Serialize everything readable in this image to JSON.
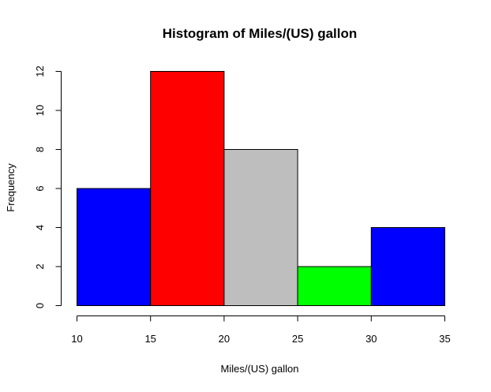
{
  "chart_data": {
    "type": "bar",
    "title": "Histogram of Miles/(US) gallon",
    "xlabel": "Miles/(US) gallon",
    "ylabel": "Frequency",
    "bins": [
      {
        "start": 10,
        "end": 15,
        "value": 6,
        "color": "#0000ff"
      },
      {
        "start": 15,
        "end": 20,
        "value": 12,
        "color": "#ff0000"
      },
      {
        "start": 20,
        "end": 25,
        "value": 8,
        "color": "#bebebe"
      },
      {
        "start": 25,
        "end": 30,
        "value": 2,
        "color": "#00ff00"
      },
      {
        "start": 30,
        "end": 35,
        "value": 4,
        "color": "#0000ff"
      }
    ],
    "xticks": [
      10,
      15,
      20,
      25,
      30,
      35
    ],
    "yticks": [
      0,
      2,
      4,
      6,
      8,
      10,
      12
    ],
    "xlim": [
      10,
      35
    ],
    "ylim": [
      0,
      12
    ],
    "grid": false,
    "legend": "none"
  }
}
